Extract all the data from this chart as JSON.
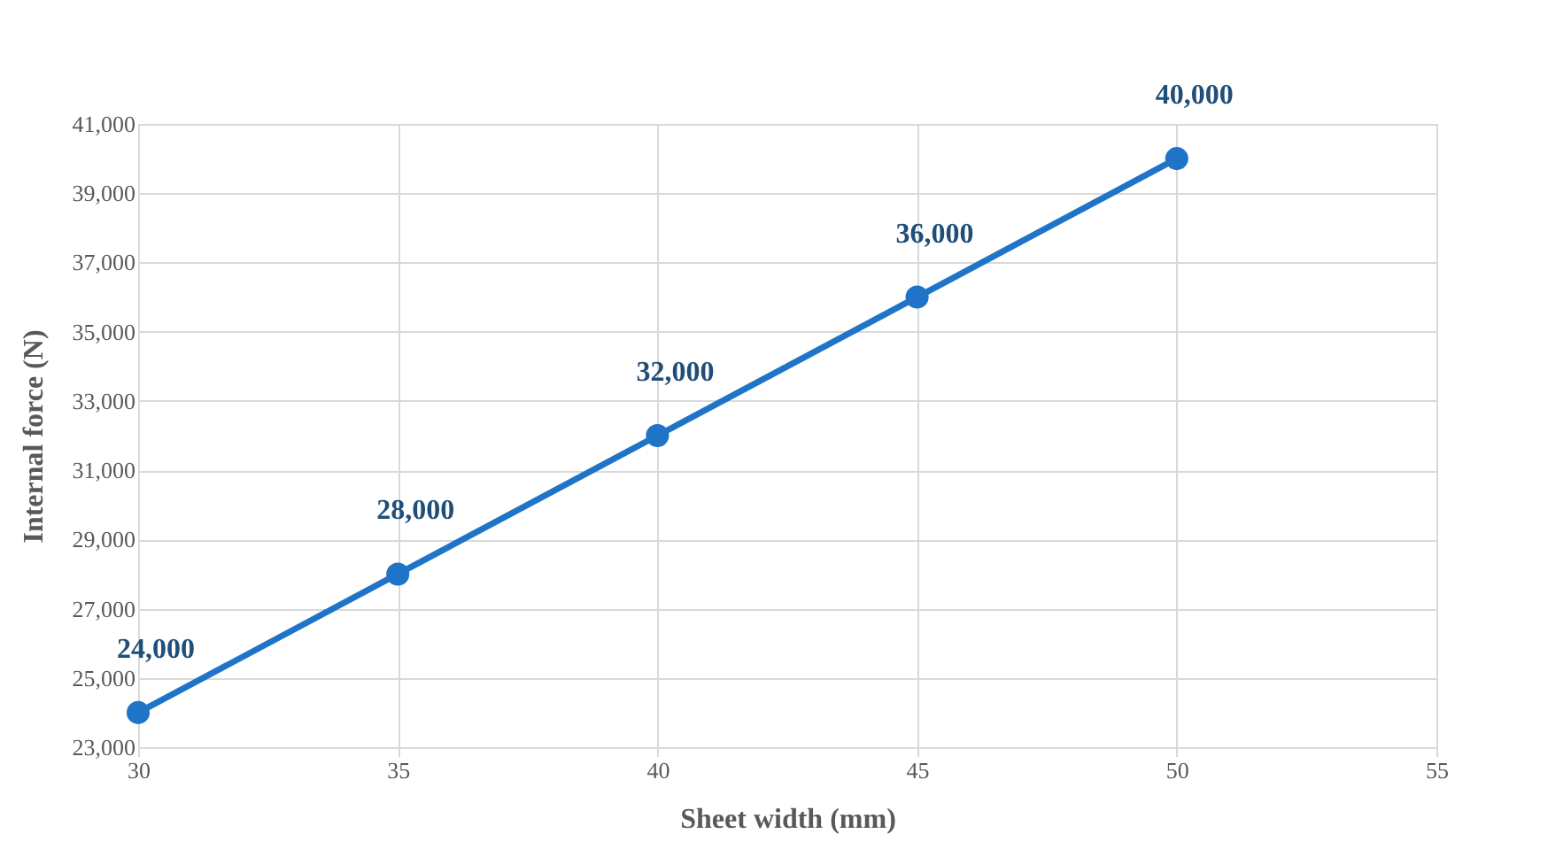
{
  "chart_data": {
    "type": "line",
    "xlabel": "Sheet width (mm)",
    "ylabel": "Internal force (N)",
    "x": [
      30,
      35,
      40,
      45,
      50
    ],
    "series": [
      {
        "color": "#1f74c8",
        "values": [
          24000,
          28000,
          32000,
          36000,
          40000
        ],
        "value_labels": [
          "24,000",
          "28,000",
          "32,000",
          "36,000",
          "40,000"
        ]
      }
    ],
    "xlim": [
      30,
      55
    ],
    "xticks": [
      30,
      35,
      40,
      45,
      50,
      55
    ],
    "ylim": [
      23000,
      41000
    ],
    "yticks": [
      {
        "value": 23000,
        "label": "23,000"
      },
      {
        "value": 25000,
        "label": "25,000"
      },
      {
        "value": 27000,
        "label": "27,000"
      },
      {
        "value": 29000,
        "label": "29,000"
      },
      {
        "value": 31000,
        "label": "31,000"
      },
      {
        "value": 33000,
        "label": "33,000"
      },
      {
        "value": 35000,
        "label": "35,000"
      },
      {
        "value": 37000,
        "label": "37,000"
      },
      {
        "value": 39000,
        "label": "39,000"
      },
      {
        "value": 41000,
        "label": "41,000"
      }
    ],
    "grid": true,
    "marker": "circle",
    "line_style": "solid"
  }
}
